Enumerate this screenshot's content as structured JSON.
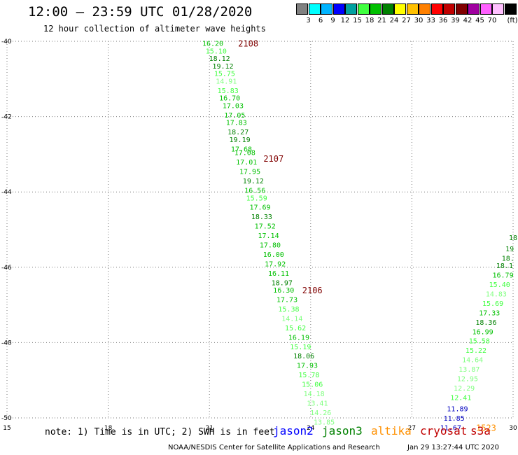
{
  "title": "12:00 – 23:59 UTC 01/28/2020",
  "subtitle": "12 hour collection of altimeter wave heights",
  "legend": {
    "unit": "(ft)",
    "items": [
      {
        "label": "",
        "color": "#808080"
      },
      {
        "label": "3",
        "color": "#00ffff"
      },
      {
        "label": "6",
        "color": "#00b4ff"
      },
      {
        "label": "9",
        "color": "#0000ff"
      },
      {
        "label": "12",
        "color": "#00a0a0"
      },
      {
        "label": "15",
        "color": "#40ff40"
      },
      {
        "label": "18",
        "color": "#00c000"
      },
      {
        "label": "21",
        "color": "#008000"
      },
      {
        "label": "24",
        "color": "#ffff00"
      },
      {
        "label": "27",
        "color": "#ffc000"
      },
      {
        "label": "30",
        "color": "#ff8000"
      },
      {
        "label": "33",
        "color": "#ff0000"
      },
      {
        "label": "36",
        "color": "#c00000"
      },
      {
        "label": "39",
        "color": "#800000"
      },
      {
        "label": "42",
        "color": "#a000a0"
      },
      {
        "label": "45",
        "color": "#ff60ff"
      },
      {
        "label": "70",
        "color": "#ffc0ff"
      },
      {
        "label": "",
        "color": "#000000"
      }
    ]
  },
  "chart_data": {
    "type": "map",
    "x_ticks": [
      "15",
      "18",
      "21",
      "24",
      "27",
      "30"
    ],
    "y_ticks": [
      "-40",
      "-42",
      "-44",
      "-46",
      "-48",
      "-50"
    ],
    "xlim": [
      15,
      30
    ],
    "ylim": [
      -50,
      -40
    ],
    "grid": true,
    "track1": {
      "satellite": "jason3",
      "points": [
        {
          "lon": 21.1,
          "lat": -40.05,
          "v": "16.20",
          "c": "#00c000"
        },
        {
          "lon": 21.2,
          "lat": -40.25,
          "v": "15.10",
          "c": "#40ff40"
        },
        {
          "lon": 21.3,
          "lat": -40.45,
          "v": "18.12",
          "c": "#008000"
        },
        {
          "lon": 21.4,
          "lat": -40.65,
          "v": "19.12",
          "c": "#008000"
        },
        {
          "lon": 21.45,
          "lat": -40.85,
          "v": "15.75",
          "c": "#40ff40"
        },
        {
          "lon": 21.5,
          "lat": -41.05,
          "v": "14.91",
          "c": "#80ff80"
        },
        {
          "lon": 21.55,
          "lat": -41.3,
          "v": "15.83",
          "c": "#40ff40"
        },
        {
          "lon": 21.6,
          "lat": -41.5,
          "v": "16.70",
          "c": "#00c000"
        },
        {
          "lon": 21.7,
          "lat": -41.7,
          "v": "17.03",
          "c": "#00c000"
        },
        {
          "lon": 21.75,
          "lat": -41.95,
          "v": "17.05",
          "c": "#00c000"
        },
        {
          "lon": 21.8,
          "lat": -42.15,
          "v": "17.83",
          "c": "#00c000"
        },
        {
          "lon": 21.85,
          "lat": -42.4,
          "v": "18.27",
          "c": "#008000"
        },
        {
          "lon": 21.9,
          "lat": -42.6,
          "v": "19.19",
          "c": "#008000"
        },
        {
          "lon": 21.95,
          "lat": -42.85,
          "v": "17.68",
          "c": "#00c000"
        },
        {
          "lon": 22.05,
          "lat": -42.95,
          "v": "17.08",
          "c": "#00c000"
        },
        {
          "lon": 22.1,
          "lat": -43.2,
          "v": "17.01",
          "c": "#00c000"
        },
        {
          "lon": 22.2,
          "lat": -43.45,
          "v": "17.95",
          "c": "#00c000"
        },
        {
          "lon": 22.3,
          "lat": -43.7,
          "v": "19.12",
          "c": "#008000"
        },
        {
          "lon": 22.35,
          "lat": -43.95,
          "v": "16.56",
          "c": "#00c000"
        },
        {
          "lon": 22.4,
          "lat": -44.15,
          "v": "15.59",
          "c": "#40ff40"
        },
        {
          "lon": 22.5,
          "lat": -44.4,
          "v": "17.69",
          "c": "#00c000"
        },
        {
          "lon": 22.55,
          "lat": -44.65,
          "v": "18.33",
          "c": "#008000"
        },
        {
          "lon": 22.65,
          "lat": -44.9,
          "v": "17.52",
          "c": "#00c000"
        },
        {
          "lon": 22.75,
          "lat": -45.15,
          "v": "17.14",
          "c": "#00c000"
        },
        {
          "lon": 22.8,
          "lat": -45.4,
          "v": "17.80",
          "c": "#00c000"
        },
        {
          "lon": 22.9,
          "lat": -45.65,
          "v": "16.00",
          "c": "#00c000"
        },
        {
          "lon": 22.95,
          "lat": -45.9,
          "v": "17.92",
          "c": "#00c000"
        },
        {
          "lon": 23.05,
          "lat": -46.15,
          "v": "16.11",
          "c": "#00c000"
        },
        {
          "lon": 23.15,
          "lat": -46.4,
          "v": "18.97",
          "c": "#008000"
        },
        {
          "lon": 23.2,
          "lat": -46.6,
          "v": "16.30",
          "c": "#00c000"
        },
        {
          "lon": 23.3,
          "lat": -46.85,
          "v": "17.73",
          "c": "#00c000"
        },
        {
          "lon": 23.35,
          "lat": -47.1,
          "v": "15.38",
          "c": "#40ff40"
        },
        {
          "lon": 23.45,
          "lat": -47.35,
          "v": "14.14",
          "c": "#80ff80"
        },
        {
          "lon": 23.55,
          "lat": -47.6,
          "v": "15.62",
          "c": "#40ff40"
        },
        {
          "lon": 23.65,
          "lat": -47.85,
          "v": "16.19",
          "c": "#00c000"
        },
        {
          "lon": 23.7,
          "lat": -48.1,
          "v": "15.19",
          "c": "#40ff40"
        },
        {
          "lon": 23.8,
          "lat": -48.35,
          "v": "18.06",
          "c": "#008000"
        },
        {
          "lon": 23.9,
          "lat": -48.6,
          "v": "17.93",
          "c": "#00c000"
        },
        {
          "lon": 23.95,
          "lat": -48.85,
          "v": "15.78",
          "c": "#40ff40"
        },
        {
          "lon": 24.05,
          "lat": -49.1,
          "v": "15.06",
          "c": "#40ff40"
        },
        {
          "lon": 24.1,
          "lat": -49.35,
          "v": "14.18",
          "c": "#80ff80"
        },
        {
          "lon": 24.2,
          "lat": -49.6,
          "v": "13.41",
          "c": "#80ff80"
        },
        {
          "lon": 24.3,
          "lat": -49.85,
          "v": "14.26",
          "c": "#80ff80"
        },
        {
          "lon": 24.4,
          "lat": -50.1,
          "v": "13.85",
          "c": "#80ff80"
        }
      ],
      "time_labels": [
        {
          "lon": 22.15,
          "lat": -40.05,
          "t": "2108"
        },
        {
          "lon": 22.9,
          "lat": -43.1,
          "t": "2107"
        },
        {
          "lon": 24.05,
          "lat": -46.6,
          "t": "2106"
        }
      ]
    },
    "track2": {
      "satellite": "jason3",
      "points": [
        {
          "lon": 30.0,
          "lat": -45.2,
          "v": "18",
          "c": "#008000"
        },
        {
          "lon": 29.9,
          "lat": -45.5,
          "v": "19",
          "c": "#008000"
        },
        {
          "lon": 29.85,
          "lat": -45.75,
          "v": "18.",
          "c": "#008000"
        },
        {
          "lon": 29.75,
          "lat": -45.95,
          "v": "18.1",
          "c": "#008000"
        },
        {
          "lon": 29.7,
          "lat": -46.2,
          "v": "16.79",
          "c": "#00c000"
        },
        {
          "lon": 29.6,
          "lat": -46.45,
          "v": "15.40",
          "c": "#40ff40"
        },
        {
          "lon": 29.5,
          "lat": -46.7,
          "v": "14.83",
          "c": "#80ff80"
        },
        {
          "lon": 29.4,
          "lat": -46.95,
          "v": "15.69",
          "c": "#40ff40"
        },
        {
          "lon": 29.3,
          "lat": -47.2,
          "v": "17.33",
          "c": "#00c000"
        },
        {
          "lon": 29.2,
          "lat": -47.45,
          "v": "18.36",
          "c": "#008000"
        },
        {
          "lon": 29.1,
          "lat": -47.7,
          "v": "16.99",
          "c": "#00c000"
        },
        {
          "lon": 29.0,
          "lat": -47.95,
          "v": "15.58",
          "c": "#40ff40"
        },
        {
          "lon": 28.9,
          "lat": -48.2,
          "v": "15.22",
          "c": "#40ff40"
        },
        {
          "lon": 28.8,
          "lat": -48.45,
          "v": "14.64",
          "c": "#80ff80"
        },
        {
          "lon": 28.7,
          "lat": -48.7,
          "v": "13.87",
          "c": "#80ff80"
        },
        {
          "lon": 28.65,
          "lat": -48.95,
          "v": "12.95",
          "c": "#80ff80"
        },
        {
          "lon": 28.55,
          "lat": -49.2,
          "v": "12.29",
          "c": "#80ff80"
        },
        {
          "lon": 28.45,
          "lat": -49.45,
          "v": "12.41",
          "c": "#40ff40"
        },
        {
          "lon": 28.35,
          "lat": -49.75,
          "v": "11.89",
          "c": "#0000c0"
        },
        {
          "lon": 28.25,
          "lat": -50.0,
          "v": "11.85",
          "c": "#0000c0"
        },
        {
          "lon": 28.15,
          "lat": -50.25,
          "v": "11.67",
          "c": "#0000c0"
        }
      ],
      "time_labels": [
        {
          "lon": 29.2,
          "lat": -50.25,
          "t": "1523",
          "c": "#ff9000"
        }
      ]
    }
  },
  "note": "note: 1) Time is in UTC; 2) SWH is in feet",
  "satellites": [
    {
      "name": "jason2",
      "color": "#0000ff",
      "x": 390
    },
    {
      "name": "jason3",
      "color": "#008000",
      "x": 460
    },
    {
      "name": "altika",
      "color": "#ff9000",
      "x": 530
    },
    {
      "name": "cryosat",
      "color": "#c00000",
      "x": 600
    },
    {
      "name": "s3a",
      "color": "#c00000",
      "x": 672
    }
  ],
  "footer_left": "NOAA/NESDIS Center for Satellite Applications and Research",
  "footer_right": "Jan 29 13:27:44 UTC 2020"
}
